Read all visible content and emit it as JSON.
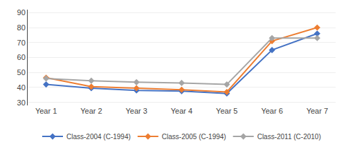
{
  "chart_data": {
    "type": "line",
    "categories": [
      "Year 1",
      "Year 2",
      "Year 3",
      "Year 4",
      "Year 5",
      "Year 6",
      "Year 7"
    ],
    "series": [
      {
        "name": "Class-2004 (C-1994)",
        "color": "#4472C4",
        "marker": "diamond",
        "values": [
          42,
          39.5,
          38,
          37.5,
          36,
          65,
          76
        ]
      },
      {
        "name": "Class-2005 (C-1994)",
        "color": "#ED7D31",
        "marker": "diamond",
        "values": [
          46.5,
          40.5,
          39.5,
          38.5,
          37,
          71,
          80
        ]
      },
      {
        "name": "Class-2011 (C-2010)",
        "color": "#A5A5A5",
        "marker": "diamond",
        "values": [
          46,
          44.5,
          43.5,
          43,
          42,
          73,
          73
        ]
      }
    ],
    "ylim": [
      28,
      92
    ],
    "yticks": [
      30,
      40,
      50,
      60,
      70,
      80,
      90
    ],
    "grid": true,
    "legend": "bottom"
  }
}
